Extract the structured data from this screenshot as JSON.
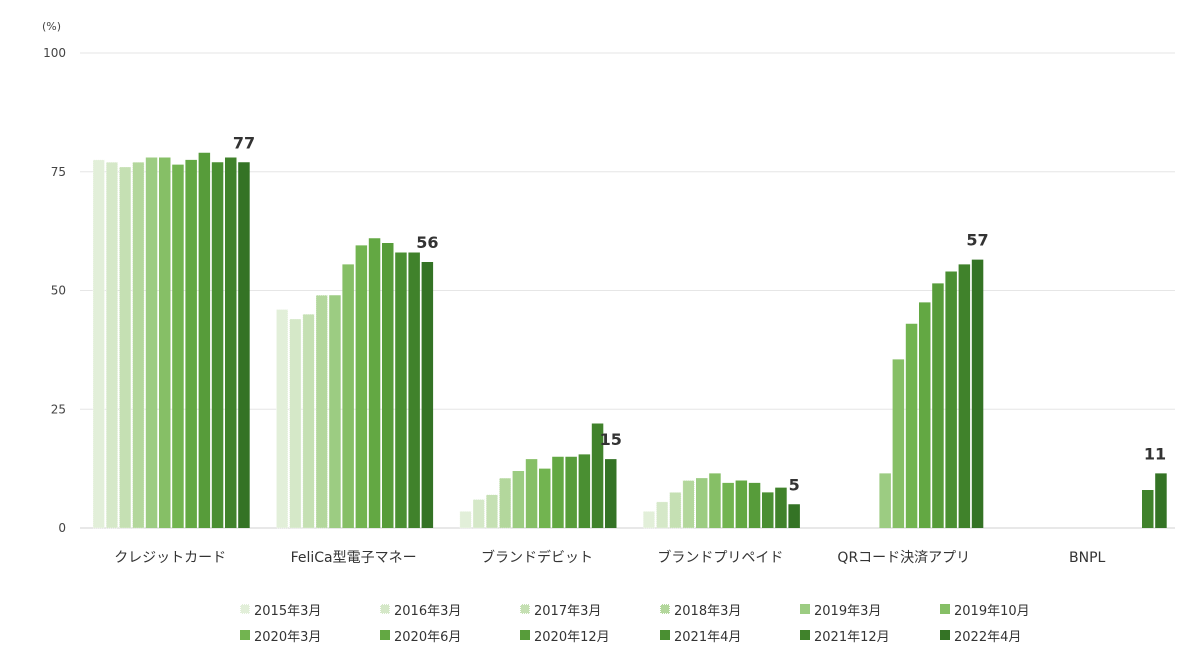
{
  "chart_data": {
    "type": "bar",
    "unit_label": "(%)",
    "ylim": [
      0,
      100
    ],
    "yticks": [
      "0",
      "25",
      "50",
      "75",
      "100"
    ],
    "grid": true,
    "legend_position": "bottom",
    "categories": [
      "クレジットカード",
      "FeliCa型電子マネー",
      "ブランドデビット",
      "ブランドプリペイド",
      "QRコード決済アプリ",
      "BNPL"
    ],
    "series": [
      {
        "name": "2015年3月",
        "color": "#e2efd9",
        "values": [
          77.5,
          46,
          3.5,
          3.5,
          null,
          null
        ]
      },
      {
        "name": "2016年3月",
        "color": "#d5e8c8",
        "values": [
          77,
          44,
          6,
          5.5,
          null,
          null
        ]
      },
      {
        "name": "2017年3月",
        "color": "#c5e0b3",
        "values": [
          76,
          45,
          7,
          7.5,
          null,
          null
        ]
      },
      {
        "name": "2018年3月",
        "color": "#b3d79c",
        "values": [
          77,
          49,
          10.5,
          10,
          null,
          null
        ]
      },
      {
        "name": "2019年3月",
        "color": "#9ccc82",
        "values": [
          78,
          49,
          12,
          10.5,
          11.5,
          null
        ]
      },
      {
        "name": "2019年10月",
        "color": "#86bf66",
        "values": [
          78,
          55.5,
          14.5,
          11.5,
          35.5,
          null
        ]
      },
      {
        "name": "2020年3月",
        "color": "#72b450",
        "values": [
          76.5,
          59.5,
          12.5,
          9.5,
          43,
          null
        ]
      },
      {
        "name": "2020年6月",
        "color": "#63a843",
        "values": [
          77.5,
          61,
          15,
          10,
          47.5,
          null
        ]
      },
      {
        "name": "2020年12月",
        "color": "#579c3a",
        "values": [
          79,
          60,
          15,
          9.5,
          51.5,
          null
        ]
      },
      {
        "name": "2021年4月",
        "color": "#4a8f32",
        "values": [
          77,
          58,
          15.5,
          7.5,
          54,
          null
        ]
      },
      {
        "name": "2021年12月",
        "color": "#40822b",
        "values": [
          78,
          58,
          22,
          8.5,
          55.5,
          8
        ]
      },
      {
        "name": "2022年4月",
        "color": "#347325",
        "values": [
          77,
          56,
          14.5,
          5,
          56.5,
          11.5
        ]
      }
    ],
    "data_labels": [
      "77",
      "56",
      "15",
      "5",
      "57",
      "11"
    ]
  }
}
